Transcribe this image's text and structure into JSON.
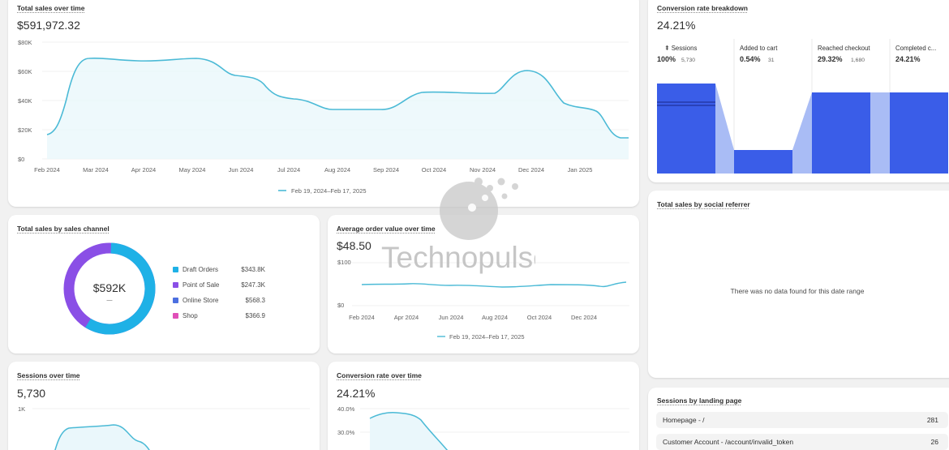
{
  "total_sales": {
    "title": "Total sales over time",
    "value": "$591,972.32",
    "y_ticks": [
      "$80K",
      "$60K",
      "$40K",
      "$20K",
      "$0"
    ],
    "x_ticks": [
      "Feb 2024",
      "Mar 2024",
      "Apr 2024",
      "May 2024",
      "Jun 2024",
      "Jul 2024",
      "Aug 2024",
      "Sep 2024",
      "Oct 2024",
      "Nov 2024",
      "Dec 2024",
      "Jan 2025"
    ],
    "legend": "Feb 19, 2024–Feb 17, 2025",
    "line_color": "#4bbad6"
  },
  "conversion_breakdown": {
    "title": "Conversion rate breakdown",
    "value": "24.21%",
    "steps": [
      {
        "label": "Sessions",
        "pct": "100%",
        "count": "5,730"
      },
      {
        "label": "Added to cart",
        "pct": "0.54%",
        "count": "31"
      },
      {
        "label": "Reached checkout",
        "pct": "29.32%",
        "count": "1,680"
      },
      {
        "label": "Completed c...",
        "pct": "24.21%",
        "count": ""
      }
    ],
    "bar_color": "#3a5de8"
  },
  "sales_channel": {
    "title": "Total sales by sales channel",
    "center_value": "$592K",
    "center_sub": "—",
    "items": [
      {
        "label": "Draft Orders",
        "value": "$343.8K",
        "color": "#1fb1e6"
      },
      {
        "label": "Point of Sale",
        "value": "$247.3K",
        "color": "#8a4fe6"
      },
      {
        "label": "Online Store",
        "value": "$568.3",
        "color": "#4c6fe0"
      },
      {
        "label": "Shop",
        "value": "$366.9",
        "color": "#e04fb8"
      }
    ]
  },
  "aov": {
    "title": "Average order value over time",
    "value": "$48.50",
    "y_ticks": [
      "$100",
      "$0"
    ],
    "x_ticks": [
      "Feb 2024",
      "Apr 2024",
      "Jun 2024",
      "Aug 2024",
      "Oct 2024",
      "Dec 2024"
    ],
    "legend": "Feb 19, 2024–Feb 17, 2025"
  },
  "social": {
    "title": "Total sales by social referrer",
    "empty_text": "There was no data found for this date range"
  },
  "sessions": {
    "title": "Sessions over time",
    "value": "5,730",
    "y_ticks": [
      "1K"
    ]
  },
  "conv_time": {
    "title": "Conversion rate over time",
    "value": "24.21%",
    "y_ticks": [
      "40.0%",
      "30.0%"
    ]
  },
  "landing": {
    "title": "Sessions by landing page",
    "rows": [
      {
        "label": "Homepage - /",
        "value": "281"
      },
      {
        "label": "Customer Account - /account/invalid_token",
        "value": "26"
      }
    ]
  },
  "watermark": "Technopulse"
}
